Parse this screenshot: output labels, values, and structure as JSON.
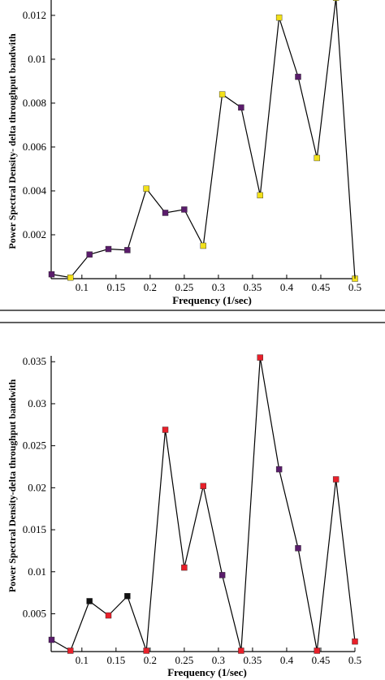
{
  "chart_data": [
    {
      "type": "line",
      "title": "",
      "xlabel": "Frequency (1/sec)",
      "ylabel": "Power Spectral Density- delta throughput bandwith",
      "xlim": [
        0.055,
        0.5
      ],
      "ylim": [
        0,
        0.0127
      ],
      "xticks": [
        "0.1",
        "0.15",
        "0.2",
        "0.25",
        "0.3",
        "0.35",
        "0.4",
        "0.45",
        "0.5"
      ],
      "yticks": [
        "0.002",
        "0.004",
        "0.006",
        "0.008",
        "0.01",
        "0.012"
      ],
      "grid": false,
      "x": [
        0.0556,
        0.0833,
        0.1111,
        0.1389,
        0.1667,
        0.1944,
        0.2222,
        0.25,
        0.2778,
        0.3056,
        0.3333,
        0.3611,
        0.3889,
        0.4167,
        0.4444,
        0.4722,
        0.5
      ],
      "y": [
        0.0002,
        5e-05,
        0.0011,
        0.00135,
        0.0013,
        0.0041,
        0.003,
        0.00315,
        0.0015,
        0.0084,
        0.0078,
        0.0038,
        0.0119,
        0.0092,
        0.0055,
        0.0128,
        0.0
      ],
      "point_colors": [
        "#5a1c6b",
        "#f2e01a",
        "#5a1c6b",
        "#5a1c6b",
        "#5a1c6b",
        "#f2e01a",
        "#5a1c6b",
        "#5a1c6b",
        "#f2e01a",
        "#f2e01a",
        "#5a1c6b",
        "#f2e01a",
        "#f2e01a",
        "#5a1c6b",
        "#f2e01a",
        "#f2e01a",
        "#f2e01a"
      ]
    },
    {
      "type": "line",
      "title": "",
      "xlabel": "Frequency (1/sec)",
      "ylabel": "Power Spectral Density-delta throughput bandwith",
      "xlim": [
        0.055,
        0.5
      ],
      "ylim": [
        0.0005,
        0.0357
      ],
      "xticks": [
        "0.1",
        "0.15",
        "0.2",
        "0.25",
        "0.3",
        "0.35",
        "0.4",
        "0.45",
        "0.5"
      ],
      "yticks": [
        "0.005",
        "0.01",
        "0.015",
        "0.02",
        "0.025",
        "0.03",
        "0.035"
      ],
      "grid": false,
      "x": [
        0.0556,
        0.0833,
        0.1111,
        0.1389,
        0.1667,
        0.1944,
        0.2222,
        0.25,
        0.2778,
        0.3056,
        0.3333,
        0.3611,
        0.3889,
        0.4167,
        0.4444,
        0.4722,
        0.5
      ],
      "y": [
        0.0019,
        0.0006,
        0.0065,
        0.0048,
        0.0071,
        0.0006,
        0.0269,
        0.0105,
        0.0202,
        0.0096,
        0.0006,
        0.0355,
        0.0222,
        0.0128,
        0.0006,
        0.021,
        0.0017
      ],
      "point_colors": [
        "#5a1c6b",
        "#e8202a",
        "#111111",
        "#e8202a",
        "#111111",
        "#e8202a",
        "#e8202a",
        "#e8202a",
        "#e8202a",
        "#5a1c6b",
        "#e8202a",
        "#e8202a",
        "#5a1c6b",
        "#5a1c6b",
        "#e8202a",
        "#e8202a",
        "#e8202a"
      ]
    }
  ]
}
